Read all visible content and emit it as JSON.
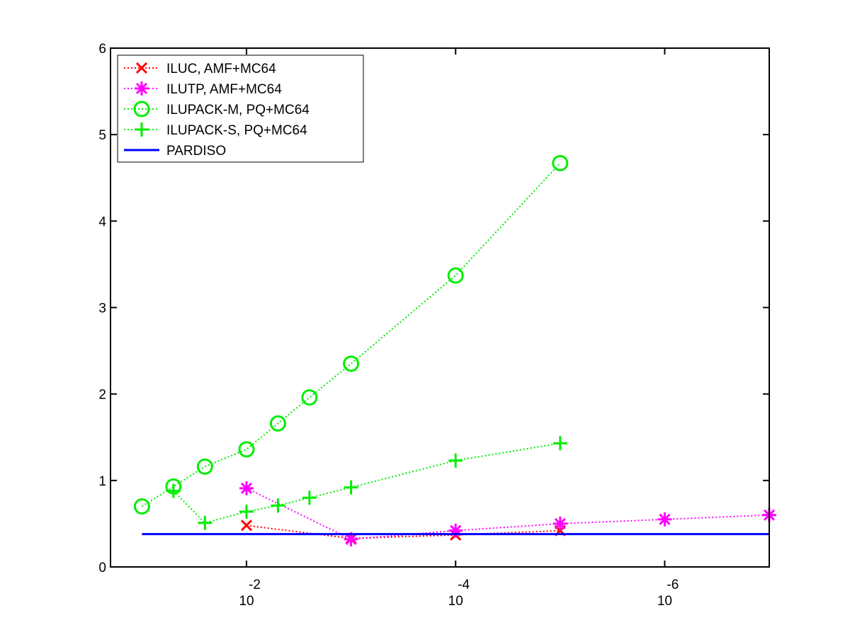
{
  "chart_data": {
    "type": "line",
    "x_scale": "log",
    "x_reversed": true,
    "xlim": [
      0.2,
      1e-07
    ],
    "ylim": [
      0,
      6
    ],
    "grid": false,
    "legend_position": "top-left",
    "x_ticks": [
      {
        "value": 0.01,
        "base": "10",
        "exponent": "-2"
      },
      {
        "value": 0.0001,
        "base": "10",
        "exponent": "-4"
      },
      {
        "value": 1e-06,
        "base": "10",
        "exponent": "-6"
      }
    ],
    "y_ticks": [
      {
        "value": 0,
        "label": "0"
      },
      {
        "value": 1,
        "label": "1"
      },
      {
        "value": 2,
        "label": "2"
      },
      {
        "value": 3,
        "label": "3"
      },
      {
        "value": 4,
        "label": "4"
      },
      {
        "value": 5,
        "label": "5"
      },
      {
        "value": 6,
        "label": "6"
      }
    ],
    "series": [
      {
        "name": "ILUC, AMF+MC64",
        "color": "#ff0000",
        "marker": "x",
        "line_style": "dotted",
        "points": [
          {
            "x": 0.01,
            "y": 0.48
          },
          {
            "x": 0.001,
            "y": 0.33
          },
          {
            "x": 0.0001,
            "y": 0.37
          },
          {
            "x": 1e-05,
            "y": 0.42
          }
        ]
      },
      {
        "name": "ILUTP, AMF+MC64",
        "color": "#ff00ff",
        "marker": "asterisk",
        "line_style": "dotted",
        "points": [
          {
            "x": 0.01,
            "y": 0.91
          },
          {
            "x": 0.001,
            "y": 0.32
          },
          {
            "x": 0.0001,
            "y": 0.42
          },
          {
            "x": 1e-05,
            "y": 0.5
          },
          {
            "x": 1e-06,
            "y": 0.55
          },
          {
            "x": 1e-07,
            "y": 0.6
          }
        ]
      },
      {
        "name": "ILUPACK-M, PQ+MC64",
        "color": "#00ee00",
        "marker": "circle",
        "line_style": "dotted",
        "points": [
          {
            "x": 0.1,
            "y": 0.7
          },
          {
            "x": 0.05,
            "y": 0.93
          },
          {
            "x": 0.025,
            "y": 1.16
          },
          {
            "x": 0.01,
            "y": 1.36
          },
          {
            "x": 0.005,
            "y": 1.66
          },
          {
            "x": 0.0025,
            "y": 1.96
          },
          {
            "x": 0.001,
            "y": 2.35
          },
          {
            "x": 0.0001,
            "y": 3.37
          },
          {
            "x": 1e-05,
            "y": 4.67
          }
        ]
      },
      {
        "name": "ILUPACK-S, PQ+MC64",
        "color": "#00ee00",
        "marker": "plus",
        "line_style": "dotted",
        "points": [
          {
            "x": 0.05,
            "y": 0.88
          },
          {
            "x": 0.025,
            "y": 0.51
          },
          {
            "x": 0.01,
            "y": 0.64
          },
          {
            "x": 0.005,
            "y": 0.71
          },
          {
            "x": 0.0025,
            "y": 0.8
          },
          {
            "x": 0.001,
            "y": 0.92
          },
          {
            "x": 0.0001,
            "y": 1.23
          },
          {
            "x": 1e-05,
            "y": 1.43
          }
        ]
      },
      {
        "name": "PARDISO",
        "color": "#0000ff",
        "marker": "none",
        "line_style": "solid",
        "points": [
          {
            "x": 0.1,
            "y": 0.38
          },
          {
            "x": 1e-07,
            "y": 0.38
          }
        ]
      }
    ]
  }
}
